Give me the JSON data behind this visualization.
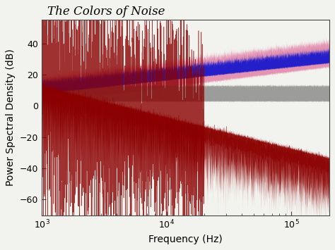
{
  "title": "The Colors of Noise",
  "xlabel": "Frequency (Hz)",
  "ylabel": "Power Spectral Density (dB)",
  "xmin": 1000,
  "xmax": 200000,
  "ymin": -70,
  "ymax": 55,
  "yticks": [
    -60,
    -40,
    -20,
    0,
    20,
    40
  ],
  "background_color": "#f2f2ee",
  "noise_colors": {
    "pink": "#e075a0",
    "blue": "#1515cc",
    "white": "#808080",
    "red": "#8b0000"
  },
  "noises": {
    "pink": {
      "slope": 10.0,
      "base_at_1k": 10.0,
      "band_half": 8.0,
      "noise_std": 2.5,
      "alpha": 0.75
    },
    "blue": {
      "slope": 8.5,
      "base_at_1k": 12.0,
      "band_half": 4.0,
      "noise_std": 1.8,
      "alpha": 0.92
    },
    "white": {
      "slope": 0.0,
      "base_at_1k": 8.0,
      "band_half": 5.0,
      "noise_std": 1.5,
      "alpha": 0.75
    },
    "red": {
      "slope": -20.0,
      "base_at_1k": 5.0,
      "band_half": 12.0,
      "noise_std": 4.0,
      "alpha": 0.92
    }
  },
  "seed": 42,
  "n_points": 5000,
  "title_fontsize": 12,
  "label_fontsize": 10,
  "tick_fontsize": 9
}
